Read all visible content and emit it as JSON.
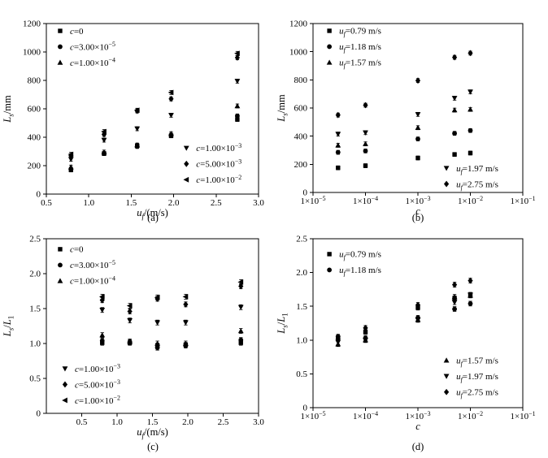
{
  "figure": {
    "background": "#ffffff",
    "ink": "#000000"
  },
  "chart_data": [
    {
      "panel": "(a)",
      "type": "scatter",
      "xlabel": "*u*~*f*~/(m/s)",
      "ylabel": "*L*~*s*~/mm",
      "xscale": "linear",
      "xlim": [
        0.5,
        3.0
      ],
      "ylim": [
        0,
        1200
      ],
      "xticks": [
        0.5,
        1.0,
        1.5,
        2.0,
        2.5,
        3.0
      ],
      "xtick_labels": [
        "0.5",
        "1.0",
        "1.5",
        "2.0",
        "2.5",
        "3.0"
      ],
      "yticks": [
        0,
        200,
        400,
        600,
        800,
        1000,
        1200
      ],
      "ytick_labels": [
        "0",
        "200",
        "400",
        "600",
        "800",
        "1000",
        "1200"
      ],
      "grid": false,
      "x": [
        0.79,
        1.18,
        1.57,
        1.97,
        2.75
      ],
      "yerr": 14,
      "series": [
        {
          "name": "*c*=0",
          "marker": "square",
          "values": [
            170,
            285,
            340,
            410,
            525
          ]
        },
        {
          "name": "*c*=3.00×10^−5^",
          "marker": "circle",
          "values": [
            175,
            285,
            335,
            415,
            550
          ]
        },
        {
          "name": "*c*=1.00×10^−4^",
          "marker": "triangle-up",
          "values": [
            190,
            295,
            345,
            425,
            620
          ]
        },
        {
          "name": "*c*=1.00×10^−3^",
          "marker": "triangle-down",
          "values": [
            245,
            380,
            460,
            555,
            795
          ]
        },
        {
          "name": "*c*=5.00×10^−3^",
          "marker": "diamond",
          "values": [
            270,
            420,
            585,
            670,
            960
          ]
        },
        {
          "name": "*c*=1.00×10^−2^",
          "marker": "triangle-left",
          "values": [
            280,
            440,
            590,
            715,
            990
          ]
        }
      ],
      "legends": [
        {
          "x": 0.065,
          "y": 0.043,
          "series": [
            0,
            1,
            2
          ]
        },
        {
          "x": 0.66,
          "y": 0.73,
          "series": [
            3,
            4,
            5
          ]
        }
      ]
    },
    {
      "panel": "(b)",
      "type": "scatter",
      "xlabel": "*c*",
      "ylabel": "*L*~*s*~/mm",
      "xscale": "log",
      "xlim": [
        1e-05,
        0.1
      ],
      "ylim": [
        0,
        1200
      ],
      "xticks": [
        1e-05,
        0.0001,
        0.001,
        0.01,
        0.1
      ],
      "xtick_labels": [
        "1×10^−5^",
        "1×10^−4^",
        "1×10^−3^",
        "1×10^−2^",
        "1×10^−1^"
      ],
      "yticks": [
        0,
        200,
        400,
        600,
        800,
        1000,
        1200
      ],
      "ytick_labels": [
        "0",
        "200",
        "400",
        "600",
        "800",
        "1000",
        "1200"
      ],
      "grid": false,
      "x": [
        3e-05,
        0.0001,
        0.001,
        0.005,
        0.01
      ],
      "yerr": 14,
      "series": [
        {
          "name": "*u*~*f*~=0.79 m/s",
          "marker": "square",
          "values": [
            175,
            190,
            245,
            270,
            280
          ]
        },
        {
          "name": "*u*~*f*~=1.18 m/s",
          "marker": "circle",
          "values": [
            285,
            295,
            380,
            420,
            440
          ]
        },
        {
          "name": "*u*~*f*~=1.57 m/s",
          "marker": "triangle-up",
          "values": [
            335,
            345,
            460,
            585,
            590
          ]
        },
        {
          "name": "*u*~*f*~=1.97 m/s",
          "marker": "triangle-down",
          "values": [
            415,
            425,
            555,
            670,
            715
          ]
        },
        {
          "name": "*u*~*f*~=2.75 m/s",
          "marker": "diamond",
          "values": [
            550,
            620,
            795,
            960,
            990
          ]
        }
      ],
      "legends": [
        {
          "x": 0.078,
          "y": 0.043,
          "series": [
            0,
            1,
            2
          ]
        },
        {
          "x": 0.636,
          "y": 0.856,
          "series": [
            3,
            4
          ]
        }
      ]
    },
    {
      "panel": "(c)",
      "type": "scatter",
      "xlabel": "*u*~*f*~/(m/s)",
      "ylabel": "*L*~*s*~/*L*~1~",
      "xscale": "linear",
      "xlim": [
        0,
        3.0
      ],
      "ylim": [
        0,
        2.5
      ],
      "xticks": [
        0.5,
        1.0,
        1.5,
        2.0,
        2.5,
        3.0
      ],
      "xtick_labels": [
        "0.5",
        "1.0",
        "1.5",
        "2.0",
        "2.5",
        "3.0"
      ],
      "yticks": [
        0,
        0.5,
        1.0,
        1.5,
        2.0,
        2.5
      ],
      "ytick_labels": [
        "0",
        "0.5",
        "1.0",
        "1.5",
        "2.0",
        "2.5"
      ],
      "grid": false,
      "x": [
        0.79,
        1.18,
        1.57,
        1.97,
        2.75
      ],
      "yerr": 0.035,
      "series": [
        {
          "name": "*c*=0",
          "marker": "square",
          "values": [
            1.01,
            1.01,
            0.97,
            0.98,
            1.01
          ]
        },
        {
          "name": "*c*=3.00×10^−5^",
          "marker": "circle",
          "values": [
            1.04,
            1.02,
            0.94,
            0.97,
            1.05
          ]
        },
        {
          "name": "*c*=1.00×10^−4^",
          "marker": "triangle-up",
          "values": [
            1.12,
            1.03,
            1.0,
            1.0,
            1.18
          ]
        },
        {
          "name": "*c*=1.00×10^−3^",
          "marker": "triangle-down",
          "values": [
            1.48,
            1.33,
            1.3,
            1.3,
            1.52
          ]
        },
        {
          "name": "*c*=5.00×10^−3^",
          "marker": "diamond",
          "values": [
            1.62,
            1.46,
            1.64,
            1.56,
            1.82
          ]
        },
        {
          "name": "*c*=1.00×10^−2^",
          "marker": "triangle-left",
          "values": [
            1.67,
            1.54,
            1.66,
            1.67,
            1.88
          ]
        }
      ],
      "legends": [
        {
          "x": 0.065,
          "y": 0.06,
          "series": [
            0,
            1,
            2
          ]
        },
        {
          "x": 0.088,
          "y": 0.744,
          "series": [
            3,
            4,
            5
          ]
        }
      ]
    },
    {
      "panel": "(d)",
      "type": "scatter",
      "xlabel": "*c*",
      "ylabel": "*L*~*s*~/*L*~1~",
      "xscale": "log",
      "xlim": [
        1e-05,
        0.1
      ],
      "ylim": [
        0,
        2.5
      ],
      "xticks": [
        1e-05,
        0.0001,
        0.001,
        0.01,
        0.1
      ],
      "xtick_labels": [
        "1×10^−5^",
        "1×10^−4^",
        "1×10^−3^",
        "1×10^−2^",
        "1×10^−1^"
      ],
      "yticks": [
        0,
        0.5,
        1.0,
        1.5,
        2.0,
        2.5
      ],
      "ytick_labels": [
        "0",
        "0.5",
        "1.0",
        "1.5",
        "2.0",
        "2.5"
      ],
      "grid": false,
      "x": [
        3e-05,
        0.0001,
        0.001,
        0.005,
        0.01
      ],
      "yerr": 0.035,
      "series": [
        {
          "name": "*u*~*f*~=0.79 m/s",
          "marker": "square",
          "values": [
            1.04,
            1.12,
            1.48,
            1.62,
            1.67
          ]
        },
        {
          "name": "*u*~*f*~=1.18 m/s",
          "marker": "circle",
          "values": [
            1.02,
            1.03,
            1.33,
            1.46,
            1.54
          ]
        },
        {
          "name": "*u*~*f*~=1.57 m/s",
          "marker": "triangle-up",
          "values": [
            0.94,
            1.0,
            1.3,
            1.64,
            1.66
          ]
        },
        {
          "name": "*u*~*f*~=1.97 m/s",
          "marker": "triangle-down",
          "values": [
            0.97,
            1.0,
            1.3,
            1.56,
            1.67
          ]
        },
        {
          "name": "*u*~*f*~=2.75 m/s",
          "marker": "diamond",
          "values": [
            1.05,
            1.18,
            1.52,
            1.82,
            1.88
          ]
        }
      ],
      "legends": [
        {
          "x": 0.078,
          "y": 0.091,
          "series": [
            0,
            1
          ]
        },
        {
          "x": 0.636,
          "y": 0.72,
          "series": [
            2,
            3,
            4
          ]
        }
      ]
    }
  ]
}
